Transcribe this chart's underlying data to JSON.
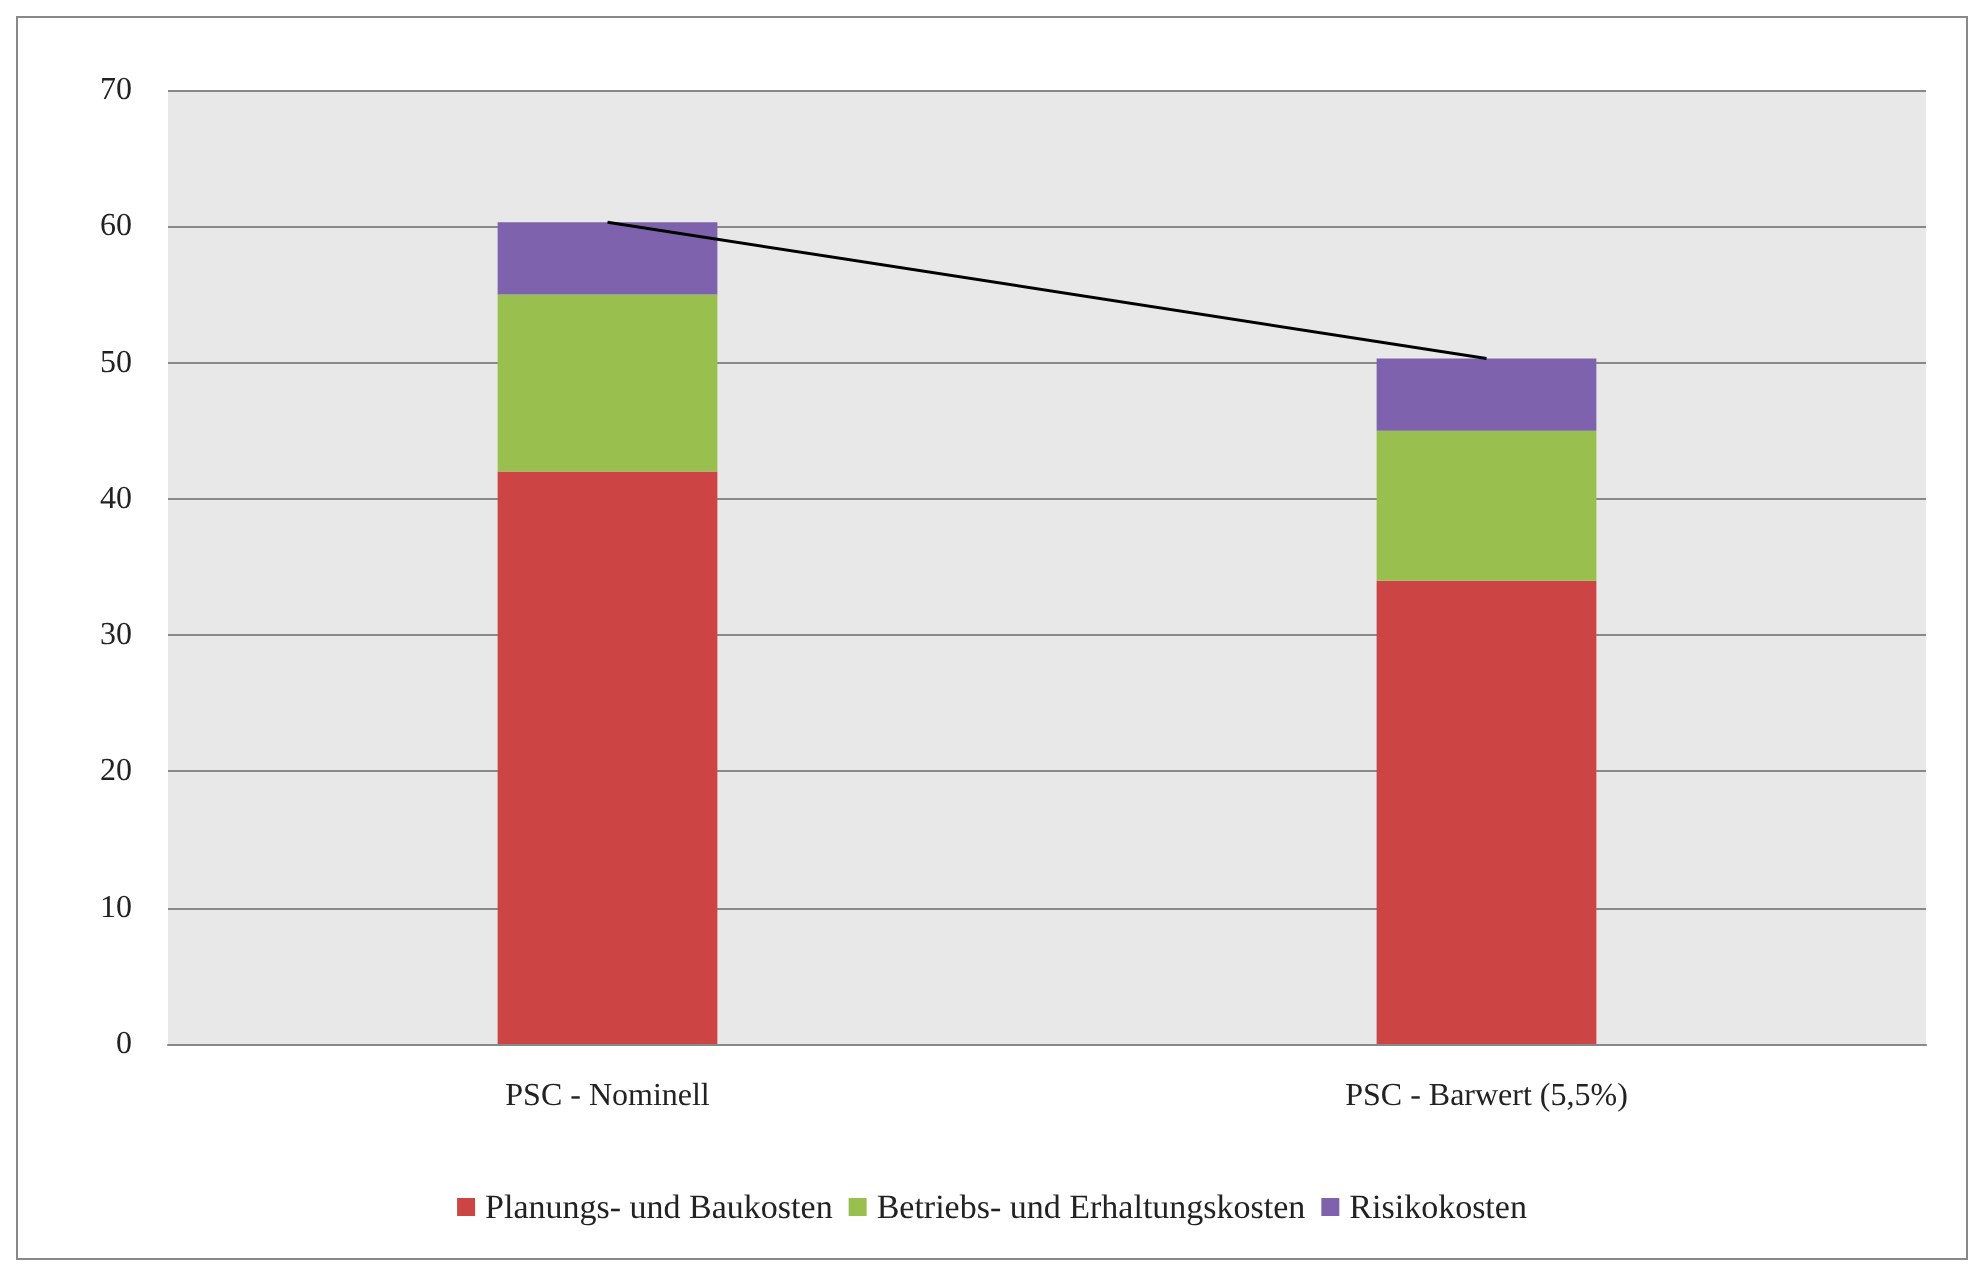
{
  "chart_data": {
    "type": "bar",
    "stacked": true,
    "categories": [
      "PSC - Nominell",
      "PSC - Barwert (5,5%)"
    ],
    "series": [
      {
        "name": "Planungs- und Baukosten",
        "color": "#cc4444",
        "values": [
          42,
          34
        ]
      },
      {
        "name": "Betriebs- und Erhaltungskosten",
        "color": "#99c04f",
        "values": [
          13,
          11
        ]
      },
      {
        "name": "Risikokosten",
        "color": "#7f62ad",
        "values": [
          5.3,
          5.3
        ]
      },
      {
        "type": "line",
        "color": "#000000",
        "values": [
          60.3,
          50.3
        ],
        "marker": "none"
      }
    ],
    "ylim": [
      0,
      70
    ],
    "yticks": [
      0,
      10,
      20,
      30,
      40,
      50,
      60,
      70
    ],
    "grid": "y",
    "legend": "bottom"
  }
}
